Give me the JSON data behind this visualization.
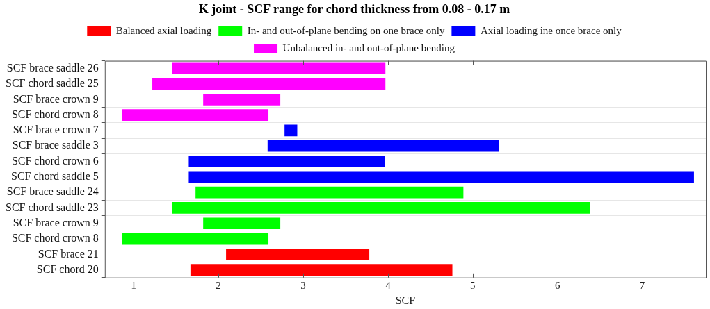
{
  "chart_data": {
    "type": "bar",
    "orientation": "horizontal",
    "title": "K joint - SCF range for chord thickness from 0.08 - 0.17 m",
    "xlabel": "SCF",
    "categories": [
      "SCF brace saddle 26",
      "SCF chord saddle 25",
      "SCF brace crown 9",
      "SCF chord crown 8",
      "SCF brace crown 7",
      "SCF brace saddle 3",
      "SCF chord crown 6",
      "SCF chord saddle 5",
      "SCF brace saddle 24",
      "SCF chord saddle 23",
      "SCF brace crown 9",
      "SCF chord crown 8",
      "SCF brace 21",
      "SCF chord 20"
    ],
    "series": [
      {
        "name": "Balanced axial loading",
        "color": "#ff0000",
        "base": [
          null,
          null,
          null,
          null,
          null,
          null,
          null,
          null,
          null,
          null,
          null,
          null,
          2.09,
          1.67
        ],
        "values": [
          null,
          null,
          null,
          null,
          null,
          null,
          null,
          null,
          null,
          null,
          null,
          null,
          1.69,
          3.09
        ]
      },
      {
        "name": "In- and out-of-plane bending on one brace only",
        "color": "#00ff00",
        "base": [
          null,
          null,
          null,
          null,
          null,
          null,
          null,
          null,
          1.73,
          1.45,
          1.82,
          0.86,
          null,
          null
        ],
        "values": [
          null,
          null,
          null,
          null,
          null,
          null,
          null,
          null,
          3.16,
          4.93,
          0.91,
          1.73,
          null,
          null
        ]
      },
      {
        "name": "Axial loading ine once brace only",
        "color": "#0000ff",
        "base": [
          null,
          null,
          null,
          null,
          2.78,
          2.58,
          1.65,
          1.65,
          null,
          null,
          null,
          null,
          null,
          null
        ],
        "values": [
          null,
          null,
          null,
          null,
          0.15,
          2.73,
          2.31,
          5.96,
          null,
          null,
          null,
          null,
          null,
          null
        ]
      },
      {
        "name": "Unbalanced in- and out-of-plane bending",
        "color": "#ff00ff",
        "base": [
          1.45,
          1.22,
          1.82,
          0.86,
          null,
          null,
          null,
          null,
          null,
          null,
          null,
          null,
          null,
          null
        ],
        "values": [
          2.52,
          2.75,
          0.91,
          1.73,
          null,
          null,
          null,
          null,
          null,
          null,
          null,
          null,
          null,
          null
        ]
      }
    ],
    "xlim": [
      0.66,
      7.75
    ],
    "xticks": [
      1,
      2,
      3,
      4,
      5,
      6,
      7
    ],
    "grid": "y",
    "legend": "top"
  }
}
